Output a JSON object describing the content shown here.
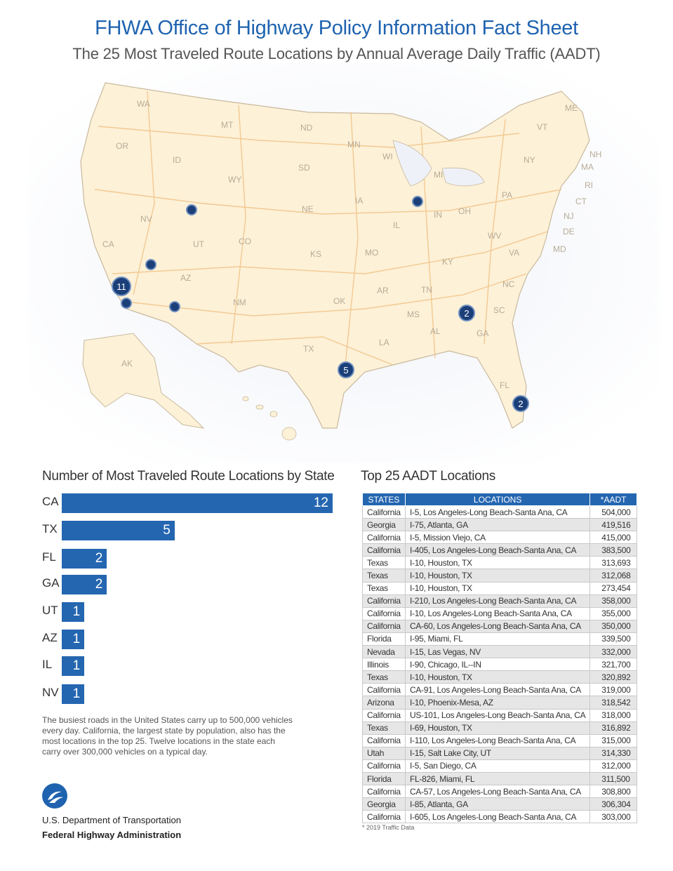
{
  "header": {
    "title": "FHWA Office of Highway Policy Information Fact Sheet",
    "subtitle": "The 25 Most Traveled Route Locations by Annual Average Daily Traffic (AADT)"
  },
  "map": {
    "state_labels": [
      "WA",
      "MT",
      "ND",
      "MN",
      "ME",
      "VT",
      "NH",
      "MA",
      "RI",
      "CT",
      "NY",
      "OR",
      "ID",
      "SD",
      "WI",
      "MI",
      "WY",
      "NE",
      "IA",
      "PA",
      "NJ",
      "DE",
      "MD",
      "NV",
      "IL",
      "IN",
      "OH",
      "UT",
      "CO",
      "KS",
      "MO",
      "KY",
      "WV",
      "VA",
      "CA",
      "AZ",
      "NM",
      "OK",
      "AR",
      "TN",
      "NC",
      "SC",
      "MS",
      "AL",
      "GA",
      "TX",
      "LA",
      "FL",
      "AK"
    ],
    "markers": [
      {
        "label": "11"
      },
      {
        "label": "2"
      },
      {
        "label": "5"
      },
      {
        "label": "2"
      },
      {
        "label": ""
      },
      {
        "label": ""
      },
      {
        "label": ""
      },
      {
        "label": ""
      },
      {
        "label": ""
      }
    ]
  },
  "bar_section": {
    "title": "Number of Most Traveled Route Locations by State",
    "caption": "The busiest roads in the United States carry up to 500,000 vehicles every day. California, the largest state by population, also has the most locations in the top 25. Twelve locations in the state each carry over 300,000 vehicles on a typical day."
  },
  "chart_data": {
    "type": "bar",
    "categories": [
      "CA",
      "TX",
      "FL",
      "GA",
      "UT",
      "AZ",
      "IL",
      "NV"
    ],
    "values": [
      12,
      5,
      2,
      2,
      1,
      1,
      1,
      1
    ],
    "title": "Number of Most Traveled Route Locations by State",
    "orientation": "horizontal",
    "color": "#2466b0"
  },
  "table": {
    "title": "Top 25 AADT Locations",
    "headers": [
      "STATES",
      "LOCATIONS",
      "*AADT"
    ],
    "rows": [
      [
        "California",
        "I-5, Los Angeles-Long Beach-Santa Ana, CA",
        "504,000"
      ],
      [
        "Georgia",
        "I-75, Atlanta, GA",
        "419,516"
      ],
      [
        "California",
        "I-5, Mission Viejo, CA",
        "415,000"
      ],
      [
        "California",
        "I-405, Los Angeles-Long Beach-Santa Ana, CA",
        "383,500"
      ],
      [
        "Texas",
        "I-10, Houston, TX",
        "313,693"
      ],
      [
        "Texas",
        "I-10, Houston, TX",
        "312,068"
      ],
      [
        "Texas",
        "I-10, Houston, TX",
        "273,454"
      ],
      [
        "California",
        "I-210, Los Angeles-Long Beach-Santa Ana, CA",
        "358,000"
      ],
      [
        "California",
        "I-10, Los Angeles-Long Beach-Santa Ana, CA",
        "355,000"
      ],
      [
        "California",
        "CA-60, Los Angeles-Long Beach-Santa Ana, CA",
        "350,000"
      ],
      [
        "Florida",
        "I-95, Miami, FL",
        "339,500"
      ],
      [
        "Nevada",
        "I-15, Las Vegas, NV",
        "332,000"
      ],
      [
        "Illinois",
        "I-90, Chicago, IL--IN",
        "321,700"
      ],
      [
        "Texas",
        "I-10, Houston, TX",
        "320,892"
      ],
      [
        "California",
        "CA-91, Los Angeles-Long Beach-Santa Ana, CA",
        "319,000"
      ],
      [
        "Arizona",
        "I-10, Phoenix-Mesa, AZ",
        "318,542"
      ],
      [
        "California",
        "US-101, Los Angeles-Long Beach-Santa Ana, CA",
        "318,000"
      ],
      [
        "Texas",
        "I-69, Houston, TX",
        "316,892"
      ],
      [
        "California",
        "I-110, Los Angeles-Long Beach-Santa Ana, CA",
        "315,000"
      ],
      [
        "Utah",
        "I-15, Salt Lake City, UT",
        "314,330"
      ],
      [
        "California",
        "I-5, San Diego, CA",
        "312,000"
      ],
      [
        "Florida",
        "FL-826, Miami, FL",
        "311,500"
      ],
      [
        "California",
        "CA-57, Los Angeles-Long Beach-Santa Ana, CA",
        "308,800"
      ],
      [
        "Georgia",
        "I-85, Atlanta, GA",
        "306,304"
      ],
      [
        "California",
        "I-605, Los Angeles-Long Beach-Santa Ana, CA",
        "303,000"
      ]
    ],
    "footnote": "* 2019 Traffic Data"
  },
  "footer": {
    "department": "U.S. Department of Transportation",
    "agency": "Federal Highway Administration"
  },
  "colors": {
    "brand_blue": "#1f63b0",
    "bar_blue": "#2466b0",
    "map_land": "#fdf1d8",
    "map_roads": "#f3c98e"
  }
}
